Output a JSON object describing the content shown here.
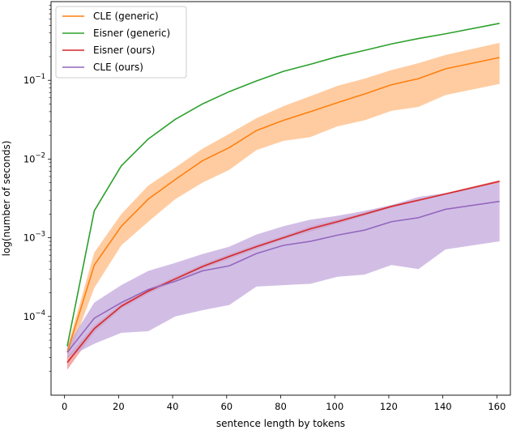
{
  "chart_data": {
    "type": "line",
    "title": "",
    "xlabel": "sentence length by tokens",
    "ylabel": "log(number of seconds)",
    "xlim": [
      -5,
      165
    ],
    "ylim": [
      1e-05,
      1.0
    ],
    "yscale": "log",
    "grid": false,
    "legend_position": "top-left",
    "x_ticks": [
      0,
      20,
      40,
      60,
      80,
      100,
      120,
      140,
      160
    ],
    "y_ticks": [
      {
        "value": 0.0001,
        "base": "10",
        "exp": "−4"
      },
      {
        "value": 0.001,
        "base": "10",
        "exp": "−3"
      },
      {
        "value": 0.01,
        "base": "10",
        "exp": "−2"
      },
      {
        "value": 0.1,
        "base": "10",
        "exp": "−1"
      }
    ],
    "x": [
      1,
      11,
      21,
      31,
      41,
      51,
      61,
      71,
      81,
      91,
      101,
      111,
      121,
      131,
      141,
      161
    ],
    "series": [
      {
        "name": "CLE (generic)",
        "color": "#ff7f0e",
        "band_color": "#ffbb82",
        "values": [
          3.5e-05,
          0.00045,
          0.0014,
          0.0031,
          0.0055,
          0.0095,
          0.014,
          0.023,
          0.031,
          0.04,
          0.052,
          0.067,
          0.088,
          0.105,
          0.14,
          0.195
        ],
        "lower": [
          2.8e-05,
          0.00023,
          0.0008,
          0.0016,
          0.0031,
          0.005,
          0.0073,
          0.013,
          0.017,
          0.019,
          0.026,
          0.031,
          0.041,
          0.046,
          0.065,
          0.09
        ],
        "upper": [
          4e-05,
          0.00065,
          0.002,
          0.0046,
          0.0078,
          0.0135,
          0.021,
          0.033,
          0.047,
          0.063,
          0.085,
          0.105,
          0.135,
          0.165,
          0.21,
          0.3
        ]
      },
      {
        "name": "Eisner (generic)",
        "color": "#2ca02c",
        "values": [
          4.2e-05,
          0.0022,
          0.0082,
          0.018,
          0.032,
          0.05,
          0.072,
          0.098,
          0.13,
          0.16,
          0.2,
          0.24,
          0.29,
          0.34,
          0.39,
          0.53
        ]
      },
      {
        "name": "Eisner (ours)",
        "color": "#d62728",
        "band_color": "#f08e8e",
        "values": [
          2.6e-05,
          7e-05,
          0.000135,
          0.00021,
          0.0003,
          0.00043,
          0.00058,
          0.00077,
          0.001,
          0.0013,
          0.0016,
          0.002,
          0.0025,
          0.003,
          0.0036,
          0.0052
        ],
        "lower": [
          2.1e-05,
          6.3e-05,
          0.000125,
          0.000195,
          0.00028,
          0.0004,
          0.00054,
          0.00072,
          0.00095,
          0.0012,
          0.0015,
          0.0019,
          0.0024,
          0.0029,
          0.0035,
          0.005
        ],
        "upper": [
          3.1e-05,
          7.7e-05,
          0.000145,
          0.000225,
          0.00032,
          0.00046,
          0.00062,
          0.00082,
          0.00106,
          0.0014,
          0.0017,
          0.0021,
          0.0026,
          0.0031,
          0.0037,
          0.0054
        ]
      },
      {
        "name": "CLE (ours)",
        "color": "#9467bd",
        "band_color": "#c3a8dc",
        "values": [
          3.5e-05,
          9.5e-05,
          0.00015,
          0.00022,
          0.00028,
          0.00038,
          0.00044,
          0.00063,
          0.0008,
          0.0009,
          0.00108,
          0.00125,
          0.0016,
          0.0018,
          0.0023,
          0.0029
        ],
        "lower": [
          3e-05,
          4.5e-05,
          6.2e-05,
          6.5e-05,
          0.0001,
          0.00012,
          0.00014,
          0.00024,
          0.00025,
          0.00026,
          0.00032,
          0.00034,
          0.00045,
          0.0004,
          0.00071,
          0.0009
        ],
        "upper": [
          4.2e-05,
          0.00015,
          0.00025,
          0.00038,
          0.00048,
          0.00062,
          0.00077,
          0.0011,
          0.0014,
          0.0017,
          0.0019,
          0.0022,
          0.0026,
          0.0033,
          0.0037,
          0.005
        ]
      }
    ]
  }
}
